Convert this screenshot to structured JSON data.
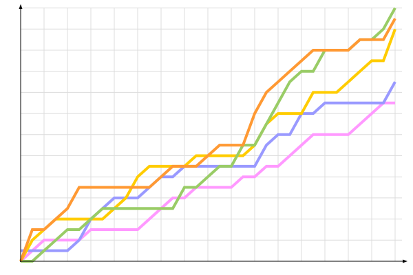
{
  "chart_data": {
    "type": "line",
    "title": "",
    "xlabel": "",
    "ylabel": "",
    "xlim": [
      0,
      32
    ],
    "ylim": [
      0,
      24
    ],
    "grid": true,
    "grid_step": {
      "x": 2,
      "y": 2
    },
    "x": [
      0,
      1,
      2,
      3,
      4,
      5,
      6,
      7,
      8,
      9,
      10,
      11,
      12,
      13,
      14,
      15,
      16,
      17,
      18,
      19,
      20,
      21,
      22,
      23,
      24,
      25,
      26,
      27,
      28,
      29,
      30,
      31,
      32
    ],
    "series": [
      {
        "color": "#ff99ff",
        "values": [
          0,
          1,
          2,
          2,
          2,
          2,
          3,
          3,
          3,
          3,
          3,
          4,
          5,
          6,
          6,
          7,
          7,
          7,
          7,
          8,
          8,
          9,
          9,
          10,
          11,
          12,
          12,
          12,
          12,
          13,
          14,
          15,
          15
        ]
      },
      {
        "color": "#9999ff",
        "values": [
          1,
          1,
          1,
          1,
          1,
          2,
          4,
          5,
          6,
          6,
          6,
          7,
          8,
          8,
          9,
          9,
          9,
          9,
          9,
          9,
          9,
          11,
          12,
          12,
          14,
          14,
          15,
          15,
          15,
          15,
          15,
          15,
          17
        ]
      },
      {
        "color": "#ffcc00",
        "values": [
          0,
          2,
          3,
          4,
          4,
          4,
          4,
          4,
          5,
          6,
          8,
          9,
          9,
          9,
          9,
          10,
          10,
          10,
          10,
          10,
          11,
          13,
          14,
          14,
          14,
          16,
          16,
          16,
          17,
          18,
          19,
          19,
          22
        ]
      },
      {
        "color": "#99cc66",
        "values": [
          0,
          0,
          1,
          2,
          3,
          3,
          4,
          5,
          5,
          5,
          5,
          5,
          5,
          5,
          7,
          7,
          8,
          9,
          9,
          11,
          11,
          13,
          15,
          17,
          18,
          18,
          20,
          20,
          20,
          21,
          21,
          22,
          24
        ]
      },
      {
        "color": "#ff9933",
        "values": [
          0,
          3,
          3,
          4,
          5,
          7,
          7,
          7,
          7,
          7,
          7,
          7,
          8,
          9,
          9,
          9,
          10,
          11,
          11,
          11,
          14,
          16,
          17,
          18,
          19,
          20,
          20,
          20,
          20,
          21,
          21,
          21,
          23
        ]
      }
    ]
  }
}
